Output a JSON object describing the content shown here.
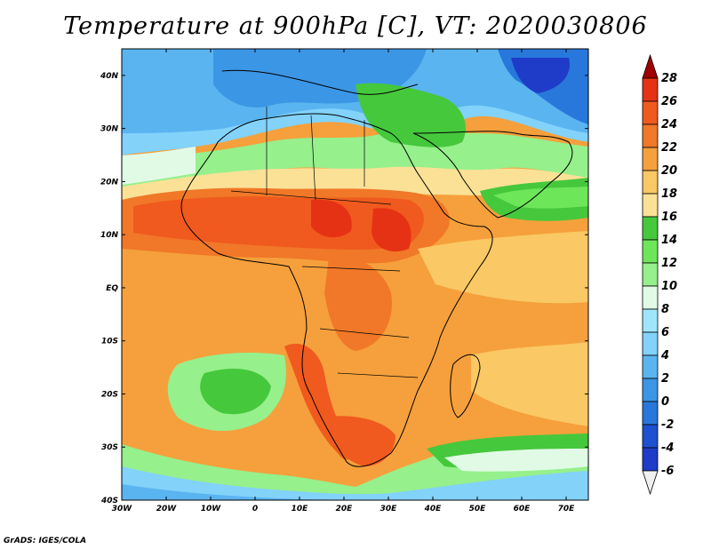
{
  "title": "Temperature at 900hPa [C], VT: 2020030806",
  "credit": "GrADS: IGES/COLA",
  "map": {
    "lon_labels": [
      "30W",
      "20W",
      "10W",
      "0",
      "10E",
      "20E",
      "30E",
      "40E",
      "50E",
      "60E",
      "70E"
    ],
    "lat_labels": [
      "40N",
      "30N",
      "20N",
      "10N",
      "EQ",
      "10S",
      "20S",
      "30S",
      "40S"
    ],
    "lon_range": [
      -30,
      75
    ],
    "lat_range": [
      -40,
      45
    ]
  },
  "colorbar": {
    "labels": [
      "28",
      "26",
      "24",
      "22",
      "20",
      "18",
      "16",
      "14",
      "12",
      "10",
      "8",
      "6",
      "4",
      "2",
      "0",
      "-2",
      "-4",
      "-6"
    ],
    "colors": [
      "#f0f0f0",
      "#1e3cc8",
      "#1e50d2",
      "#2878dc",
      "#3c96e6",
      "#5ab4f0",
      "#82d2fa",
      "#a0e6fa",
      "#e1fae6",
      "#96f08c",
      "#6ee65a",
      "#46c83c",
      "#fae196",
      "#fac864",
      "#f5a03c",
      "#f07828",
      "#f05a1e",
      "#e63214",
      "#a00000"
    ]
  }
}
